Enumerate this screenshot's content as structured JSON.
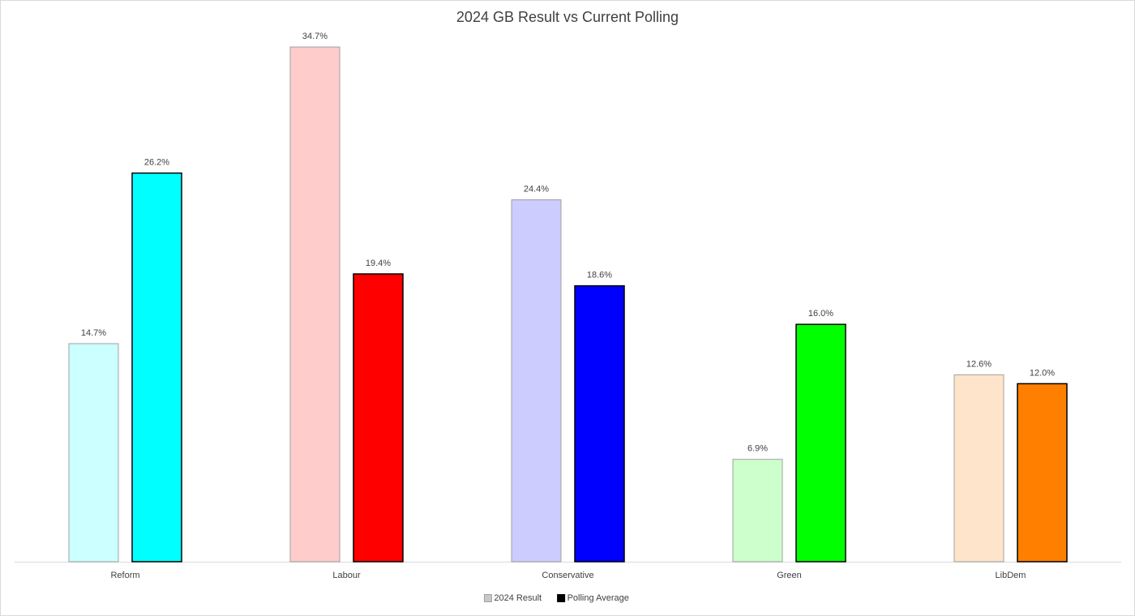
{
  "chart_data": {
    "type": "bar",
    "title": "2024 GB Result vs Current Polling",
    "categories": [
      "Reform",
      "Labour",
      "Conservative",
      "Green",
      "LibDem"
    ],
    "series": [
      {
        "name": "2024 Result",
        "color": "#c8c8c8",
        "edgecolor": "#a0a0a0",
        "colors": [
          "#ccffff",
          "#ffcccc",
          "#ccccff",
          "#ccffcc",
          "#ffe4cc"
        ],
        "values": [
          14.7,
          34.7,
          24.4,
          6.9,
          12.6
        ],
        "value_labels": [
          "14.7%",
          "34.7%",
          "24.4%",
          "6.9%",
          "12.6%"
        ]
      },
      {
        "name": "Polling Average",
        "color": "#000000",
        "edgecolor": "#000000",
        "colors": [
          "#00ffff",
          "#ff0000",
          "#0000ff",
          "#00ff00",
          "#ff8000"
        ],
        "values": [
          26.2,
          19.4,
          18.6,
          16.0,
          12.0
        ],
        "value_labels": [
          "26.2%",
          "19.4%",
          "18.6%",
          "16.0%",
          "12.0%"
        ]
      }
    ],
    "ylim": [
      0,
      35
    ],
    "legend": "bottom"
  }
}
